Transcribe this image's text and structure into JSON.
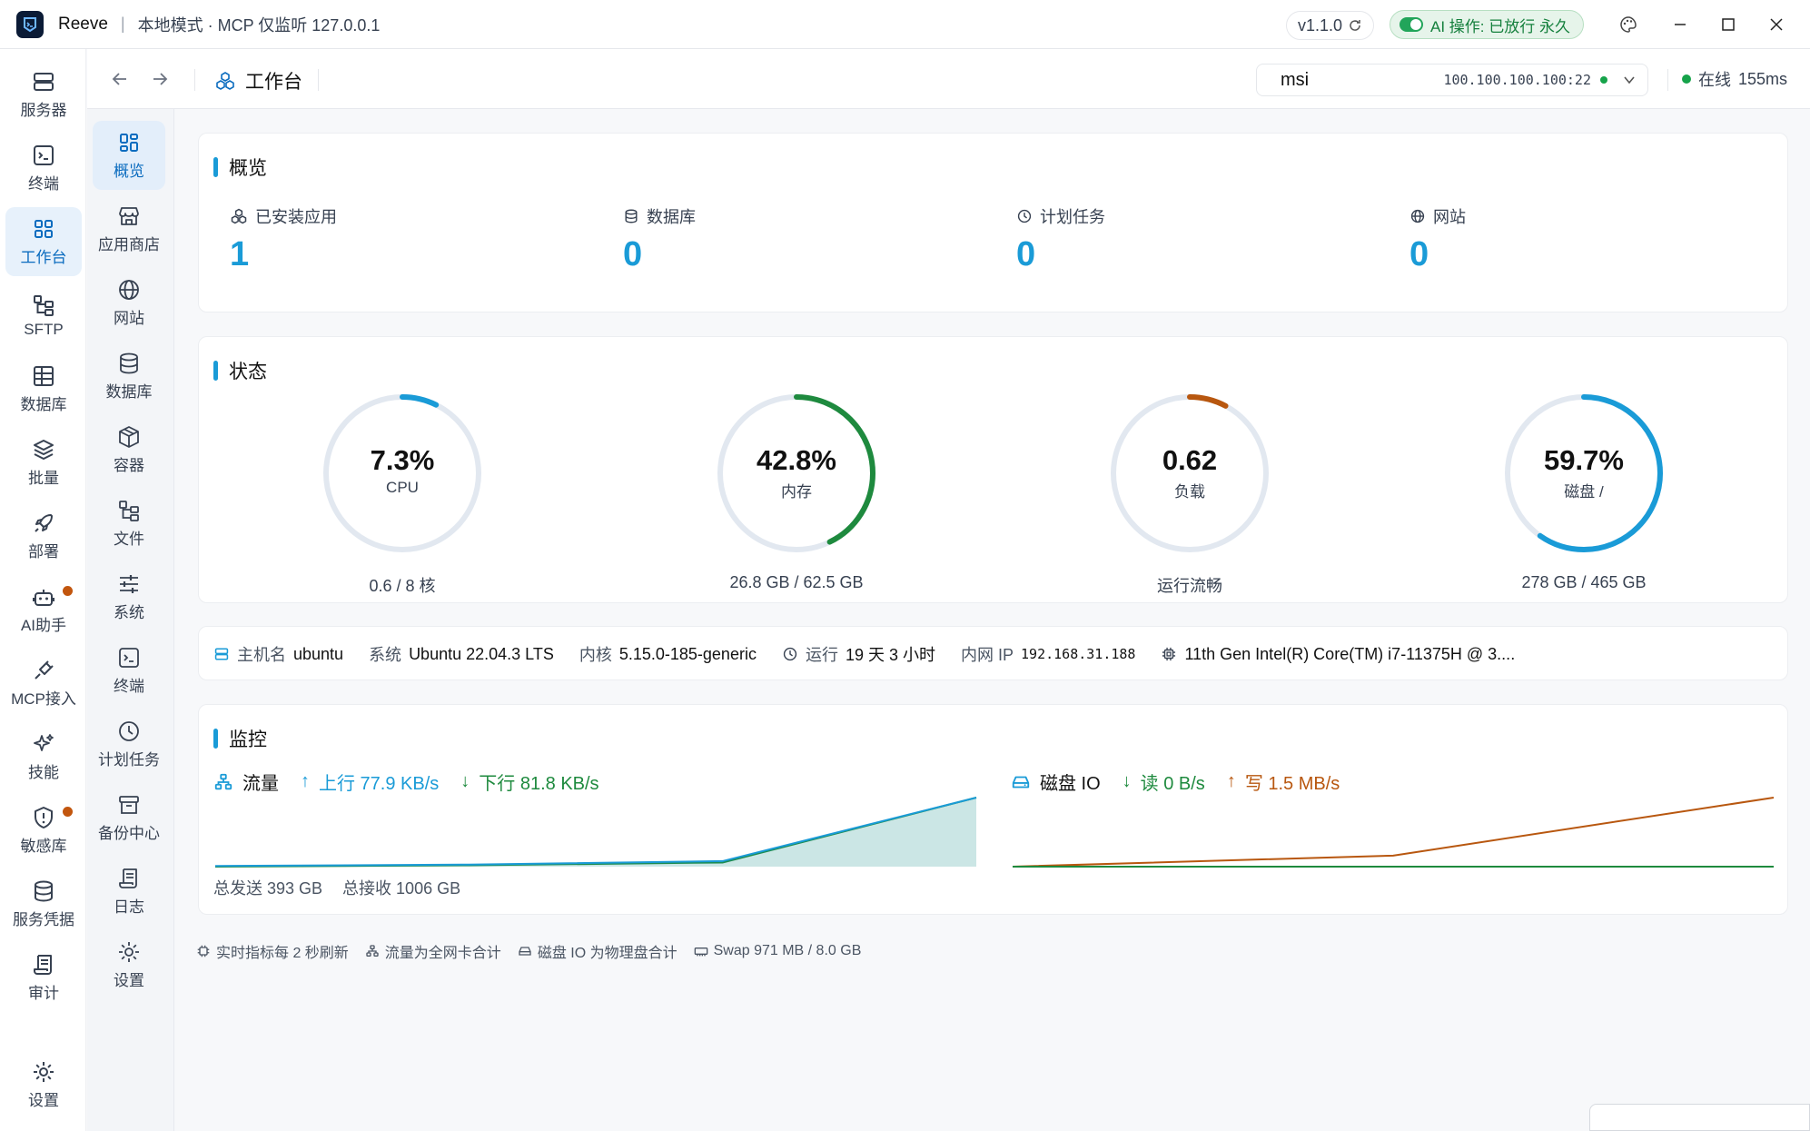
{
  "titlebar": {
    "app_name": "Reeve",
    "separator": "|",
    "mode": "本地模式 · MCP 仅监听 127.0.0.1",
    "version": "v1.1.0",
    "ai_status": "AI 操作: 已放行 永久"
  },
  "rail": {
    "items": [
      {
        "label": "服务器",
        "icon": "server-icon"
      },
      {
        "label": "终端",
        "icon": "terminal-icon"
      },
      {
        "label": "工作台",
        "icon": "dashboard-icon",
        "active": true
      },
      {
        "label": "SFTP",
        "icon": "sftp-tree-icon"
      },
      {
        "label": "数据库",
        "icon": "table-icon"
      },
      {
        "label": "批量",
        "icon": "layers-icon"
      },
      {
        "label": "部署",
        "icon": "rocket-icon"
      },
      {
        "label": "AI助手",
        "icon": "robot-icon",
        "badge": true
      },
      {
        "label": "MCP接入",
        "icon": "plug-icon"
      },
      {
        "label": "技能",
        "icon": "sparkle-icon"
      },
      {
        "label": "敏感库",
        "icon": "shield-alert-icon",
        "badge": true
      },
      {
        "label": "服务凭据",
        "icon": "database-key-icon"
      },
      {
        "label": "审计",
        "icon": "audit-scroll-icon"
      }
    ],
    "settings": "设置"
  },
  "subnav": {
    "items": [
      {
        "label": "概览",
        "icon": "overview-grid-icon",
        "active": true
      },
      {
        "label": "应用商店",
        "icon": "store-icon"
      },
      {
        "label": "网站",
        "icon": "globe-icon"
      },
      {
        "label": "数据库",
        "icon": "database-icon"
      },
      {
        "label": "容器",
        "icon": "container-box-icon"
      },
      {
        "label": "文件",
        "icon": "file-tree-icon"
      },
      {
        "label": "系统",
        "icon": "sliders-icon"
      },
      {
        "label": "终端",
        "icon": "terminal-icon"
      },
      {
        "label": "计划任务",
        "icon": "clock-icon"
      },
      {
        "label": "备份中心",
        "icon": "archive-icon"
      },
      {
        "label": "日志",
        "icon": "log-scroll-icon"
      },
      {
        "label": "设置",
        "icon": "gear-icon"
      }
    ]
  },
  "topnav": {
    "breadcrumb": "工作台",
    "server": {
      "name": "msi",
      "ip": "100.100.100.100:22"
    },
    "status": "在线",
    "latency": "155ms"
  },
  "overview": {
    "title": "概览",
    "stats": [
      {
        "label": "已安装应用",
        "value": "1",
        "icon": "apps-icon"
      },
      {
        "label": "数据库",
        "value": "0",
        "icon": "database-icon"
      },
      {
        "label": "计划任务",
        "value": "0",
        "icon": "clock-icon"
      },
      {
        "label": "网站",
        "value": "0",
        "icon": "globe-icon"
      }
    ]
  },
  "status": {
    "title": "状态",
    "gauges": [
      {
        "value": "7.3%",
        "label": "CPU",
        "sub": "0.6 / 8 核",
        "percent": 7.3,
        "color": "#1a9bd7"
      },
      {
        "value": "42.8%",
        "label": "内存",
        "sub": "26.8 GB / 62.5 GB",
        "percent": 42.8,
        "color": "#1e8a3e"
      },
      {
        "value": "0.62",
        "label": "负载",
        "sub": "运行流畅",
        "percent": 7.8,
        "color": "#b8570f"
      },
      {
        "value": "59.7%",
        "label": "磁盘 /",
        "sub": "278 GB / 465 GB",
        "percent": 59.7,
        "color": "#1a9bd7"
      }
    ]
  },
  "sysinfo": {
    "hostname_key": "主机名",
    "hostname": "ubuntu",
    "os_key": "系统",
    "os": "Ubuntu 22.04.3 LTS",
    "kernel_key": "内核",
    "kernel": "5.15.0-185-generic",
    "uptime_key": "运行",
    "uptime": "19 天 3 小时",
    "ip_key": "内网 IP",
    "ip": "192.168.31.188",
    "cpu": "11th Gen Intel(R) Core(TM) i7-11375H @ 3...."
  },
  "monitor": {
    "title": "监控",
    "traffic": {
      "title": "流量",
      "up": "上行 77.9 KB/s",
      "down": "下行 81.8 KB/s",
      "total_sent": "总发送 393 GB",
      "total_recv": "总接收 1006 GB"
    },
    "disk": {
      "title": "磁盘 IO",
      "read": "读 0 B/s",
      "write": "写 1.5 MB/s"
    }
  },
  "chart_data": [
    {
      "type": "area",
      "title": "流量",
      "x": [
        0,
        1,
        2,
        3
      ],
      "series": [
        {
          "name": "上行 77.9 KB/s",
          "values": [
            1,
            3,
            8,
            100
          ],
          "color": "#1a9bd7"
        },
        {
          "name": "下行 81.8 KB/s",
          "values": [
            0,
            2,
            6,
            100
          ],
          "color": "#1e8a3e"
        }
      ]
    },
    {
      "type": "line",
      "title": "磁盘 IO",
      "x": [
        0,
        1,
        2
      ],
      "series": [
        {
          "name": "读 0 B/s",
          "values": [
            0,
            0,
            0
          ],
          "color": "#1e8a3e"
        },
        {
          "name": "写 1.5 MB/s",
          "values": [
            0,
            16,
            100
          ],
          "color": "#b8570f"
        }
      ]
    }
  ],
  "footer": {
    "notes": [
      "实时指标每 2 秒刷新",
      "流量为全网卡合计",
      "磁盘 IO 为物理盘合计",
      "Swap 971 MB / 8.0 GB"
    ]
  }
}
